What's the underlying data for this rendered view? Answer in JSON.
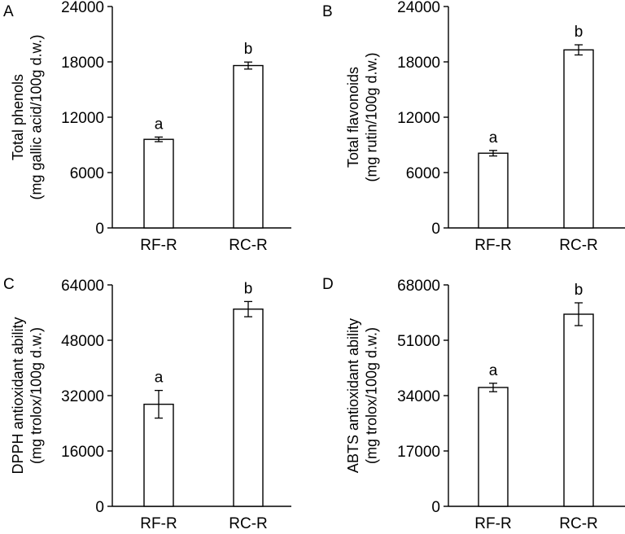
{
  "chart_data": [
    {
      "panel": "A",
      "type": "bar",
      "categories": [
        "RF-R",
        "RC-R"
      ],
      "values": [
        9600,
        17600
      ],
      "errors": [
        250,
        380
      ],
      "significance": [
        "a",
        "b"
      ],
      "ylabel_lines": [
        "Total phenols",
        "(mg gallic acid/100g d.w.)"
      ],
      "ylim": [
        0,
        24000
      ],
      "yticks": [
        0,
        6000,
        12000,
        18000,
        24000
      ],
      "ytick_labels": [
        "0",
        "6000",
        "12000",
        "18000",
        "24000"
      ],
      "grid": false
    },
    {
      "panel": "B",
      "type": "bar",
      "categories": [
        "RF-R",
        "RC-R"
      ],
      "values": [
        8100,
        19300
      ],
      "errors": [
        300,
        550
      ],
      "significance": [
        "a",
        "b"
      ],
      "ylabel_lines": [
        "Total flavonoids",
        "(mg rutin/100g d.w.)"
      ],
      "ylim": [
        0,
        24000
      ],
      "yticks": [
        0,
        6000,
        12000,
        18000,
        24000
      ],
      "ytick_labels": [
        "0",
        "6000",
        "12000",
        "18000",
        "24000"
      ],
      "grid": false
    },
    {
      "panel": "C",
      "type": "bar",
      "categories": [
        "RF-R",
        "RC-R"
      ],
      "values": [
        29500,
        57000
      ],
      "errors": [
        4000,
        2200
      ],
      "significance": [
        "a",
        "b"
      ],
      "ylabel_lines": [
        "DPPH antioxidant ability",
        "(mg trolox/100g d.w.)"
      ],
      "ylim": [
        0,
        64000
      ],
      "yticks": [
        0,
        16000,
        32000,
        48000,
        64000
      ],
      "ytick_labels": [
        "0",
        "16000",
        "32000",
        "48000",
        "64000"
      ],
      "grid": false
    },
    {
      "panel": "D",
      "type": "bar",
      "categories": [
        "RF-R",
        "RC-R"
      ],
      "values": [
        36500,
        59000
      ],
      "errors": [
        1300,
        3500
      ],
      "significance": [
        "a",
        "b"
      ],
      "ylabel_lines": [
        "ABTS antioxidant ability",
        "(mg trolox/100g d.w.)"
      ],
      "ylim": [
        0,
        68000
      ],
      "yticks": [
        0,
        17000,
        34000,
        51000,
        68000
      ],
      "ytick_labels": [
        "0",
        "17000",
        "34000",
        "51000",
        "68000"
      ],
      "grid": false
    }
  ]
}
